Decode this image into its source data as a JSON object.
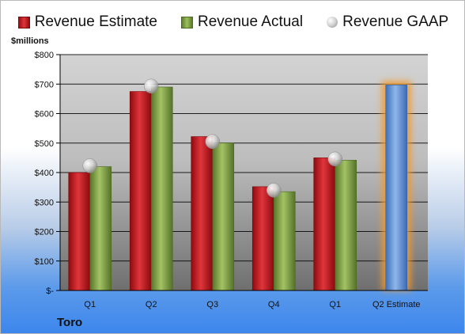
{
  "chart_data": {
    "type": "bar",
    "ylabel": "$millions",
    "company": "Toro",
    "categories": [
      "Q1",
      "Q2",
      "Q3",
      "Q4",
      "Q1",
      "Q2 Estimate"
    ],
    "ylim": [
      0,
      800
    ],
    "yticks": [
      0,
      100,
      200,
      300,
      400,
      500,
      600,
      700,
      800
    ],
    "ytick_labels": [
      "$-",
      "$100",
      "$200",
      "$300",
      "$400",
      "$500",
      "$600",
      "$700",
      "$800"
    ],
    "grid": true,
    "legend_position": "top",
    "series": [
      {
        "name": "Revenue Estimate",
        "kind": "bar",
        "color": "#c8202a",
        "values": [
          400,
          675,
          522,
          352,
          450,
          null
        ]
      },
      {
        "name": "Revenue Actual",
        "kind": "bar",
        "color": "#8aa94a",
        "values": [
          420,
          690,
          500,
          335,
          442,
          null
        ]
      },
      {
        "name": "Revenue GAAP",
        "kind": "marker",
        "color": "#c0c0c0",
        "values": [
          423,
          693,
          505,
          340,
          446,
          null
        ]
      },
      {
        "name": "Q2 Estimate",
        "kind": "bar",
        "color": "#5b8fd6",
        "highlight": "#f39a2c",
        "values": [
          null,
          null,
          null,
          null,
          null,
          697
        ]
      }
    ]
  }
}
